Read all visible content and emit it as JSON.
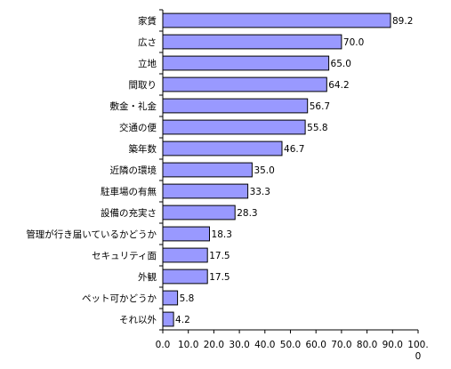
{
  "chart_data": {
    "type": "bar",
    "orientation": "horizontal",
    "categories": [
      "家賃",
      "広さ",
      "立地",
      "間取り",
      "敷金・礼金",
      "交通の便",
      "築年数",
      "近隣の環境",
      "駐車場の有無",
      "設備の充実さ",
      "管理が行き届いているかどうか",
      "セキュリティ面",
      "外観",
      "ペット可かどうか",
      "それ以外"
    ],
    "values": [
      89.2,
      70.0,
      65.0,
      64.2,
      56.7,
      55.8,
      46.7,
      35.0,
      33.3,
      28.3,
      18.3,
      17.5,
      17.5,
      5.8,
      4.2
    ],
    "value_labels": [
      "89.2",
      "70.0",
      "65.0",
      "64.2",
      "56.7",
      "55.8",
      "46.7",
      "35.0",
      "33.3",
      "28.3",
      "18.3",
      "17.5",
      "17.5",
      "5.8",
      "4.2"
    ],
    "ticks": [
      0,
      10,
      20,
      30,
      40,
      50,
      60,
      70,
      80,
      90,
      100
    ],
    "tick_labels": [
      "0.0",
      "10.0",
      "20.0",
      "30.0",
      "40.0",
      "50.0",
      "60.0",
      "70.0",
      "80.0",
      "90.0",
      "100.0"
    ],
    "xlim": [
      0,
      100
    ],
    "title": "",
    "xlabel": "",
    "ylabel": "",
    "colors": {
      "bar_fill": "#9999ff",
      "bar_stroke": "#000000"
    },
    "grid": false,
    "legend": "none"
  }
}
